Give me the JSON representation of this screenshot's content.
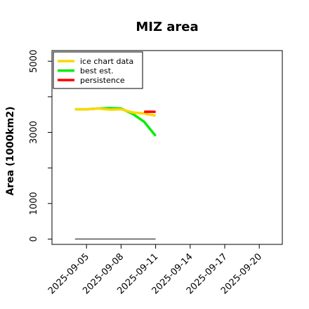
{
  "chart_data": {
    "type": "line",
    "title": "MIZ area",
    "xlabel": "",
    "ylabel": "Area (1000km2)",
    "x_ticks": [
      "2025-09-05",
      "2025-09-08",
      "2025-09-11",
      "2025-09-14",
      "2025-09-17",
      "2025-09-20"
    ],
    "y_ticks": [
      0,
      1000,
      3000,
      5000
    ],
    "xlim": [
      "2025-09-02",
      "2025-09-22"
    ],
    "ylim": [
      -150,
      5300
    ],
    "grid": false,
    "legend_position": "top-left",
    "series": [
      {
        "name": "ice chart data",
        "color": "#FFD700",
        "x": [
          "2025-09-04",
          "2025-09-05",
          "2025-09-06",
          "2025-09-07",
          "2025-09-08",
          "2025-09-09",
          "2025-09-10",
          "2025-09-11"
        ],
        "y": [
          3650,
          3650,
          3670,
          3640,
          3650,
          3560,
          3530,
          3470
        ]
      },
      {
        "name": "best est.",
        "color": "#00EE00",
        "x": [
          "2025-09-04",
          "2025-09-05",
          "2025-09-06",
          "2025-09-07",
          "2025-09-08",
          "2025-09-09",
          "2025-09-10",
          "2025-09-11"
        ],
        "y": [
          3650,
          3650,
          3670,
          3680,
          3670,
          3520,
          3300,
          2900
        ]
      },
      {
        "name": "persistence",
        "color": "#FF0000",
        "x": [
          "2025-09-10",
          "2025-09-11"
        ],
        "y": [
          3580,
          3580
        ]
      },
      {
        "name": "",
        "color": "#555555",
        "x": [
          "2025-09-04",
          "2025-09-11"
        ],
        "y": [
          0,
          0
        ]
      }
    ]
  }
}
